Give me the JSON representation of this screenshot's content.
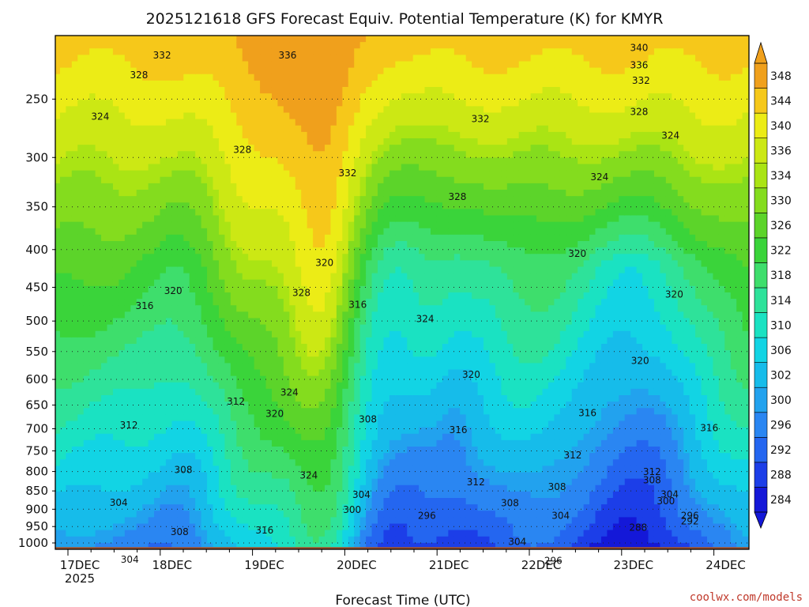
{
  "chart_data": {
    "type": "heatmap",
    "title": "2025121618 GFS Forecast Equiv. Potential Temperature (K) for KMYR",
    "xlabel": "Forecast Time (UTC)",
    "credit": "coolwx.com/models",
    "y_axis": {
      "label": "",
      "scale": "log",
      "direction": "pressure decreasing upward",
      "range_hPa": [
        1020,
        205
      ],
      "ticks": [
        1000,
        950,
        900,
        850,
        800,
        750,
        700,
        650,
        600,
        550,
        500,
        450,
        400,
        350,
        300,
        250
      ]
    },
    "x_axis": {
      "range": [
        "2025-12-16 18Z",
        "2025-12-24 06Z"
      ],
      "ticks": [
        {
          "label": "17DEC",
          "sub": "2025"
        },
        {
          "label": "18DEC",
          "sub": ""
        },
        {
          "label": "19DEC",
          "sub": ""
        },
        {
          "label": "20DEC",
          "sub": ""
        },
        {
          "label": "21DEC",
          "sub": ""
        },
        {
          "label": "22DEC",
          "sub": ""
        },
        {
          "label": "23DEC",
          "sub": ""
        },
        {
          "label": "24DEC",
          "sub": ""
        }
      ]
    },
    "colorbar": {
      "levels": [
        284,
        288,
        292,
        296,
        300,
        302,
        306,
        310,
        314,
        318,
        322,
        326,
        330,
        334,
        336,
        340,
        344,
        348
      ],
      "labels": [
        "284",
        "288",
        "292",
        "296",
        "300",
        "302",
        "306",
        "310",
        "314",
        "318",
        "322",
        "326",
        "330",
        "334",
        "336",
        "340",
        "344",
        "348"
      ],
      "colors": [
        "#1418d8",
        "#1c3ee8",
        "#2466f0",
        "#2a86f2",
        "#22a2ee",
        "#16bcea",
        "#12d4e4",
        "#1ae2c2",
        "#2ee29a",
        "#3ede6c",
        "#3ad43a",
        "#5cd42a",
        "#84dc1e",
        "#aae414",
        "#cce814",
        "#ecec16",
        "#f6c81a",
        "#f0a01c"
      ],
      "extend": "both"
    },
    "surface_color": "#a0522d",
    "grid": true,
    "contour_interval_K": 4,
    "contour_labels": [
      {
        "text": "340",
        "day": 6.19,
        "p": 213
      },
      {
        "text": "336",
        "day": 6.19,
        "p": 225
      },
      {
        "text": "332",
        "day": 6.21,
        "p": 236
      },
      {
        "text": "328",
        "day": 6.19,
        "p": 260
      },
      {
        "text": "324",
        "day": 6.53,
        "p": 280
      },
      {
        "text": "324",
        "day": 5.76,
        "p": 319
      },
      {
        "text": "332",
        "day": 1.02,
        "p": 218
      },
      {
        "text": "328",
        "day": 0.77,
        "p": 232
      },
      {
        "text": "336",
        "day": 2.38,
        "p": 218
      },
      {
        "text": "324",
        "day": 0.35,
        "p": 264
      },
      {
        "text": "328",
        "day": 1.89,
        "p": 293
      },
      {
        "text": "332",
        "day": 3.03,
        "p": 315
      },
      {
        "text": "332",
        "day": 4.47,
        "p": 266
      },
      {
        "text": "328",
        "day": 4.22,
        "p": 339
      },
      {
        "text": "320",
        "day": 2.78,
        "p": 417
      },
      {
        "text": "328",
        "day": 2.53,
        "p": 458
      },
      {
        "text": "320",
        "day": 1.14,
        "p": 455
      },
      {
        "text": "316",
        "day": 0.83,
        "p": 477
      },
      {
        "text": "316",
        "day": 3.14,
        "p": 475
      },
      {
        "text": "324",
        "day": 3.87,
        "p": 497
      },
      {
        "text": "320",
        "day": 5.52,
        "p": 405
      },
      {
        "text": "320",
        "day": 6.57,
        "p": 460
      },
      {
        "text": "320",
        "day": 4.37,
        "p": 591
      },
      {
        "text": "320",
        "day": 6.2,
        "p": 566
      },
      {
        "text": "324",
        "day": 2.4,
        "p": 625
      },
      {
        "text": "312",
        "day": 1.82,
        "p": 643
      },
      {
        "text": "320",
        "day": 2.24,
        "p": 668
      },
      {
        "text": "312",
        "day": 0.66,
        "p": 692
      },
      {
        "text": "308",
        "day": 3.25,
        "p": 680
      },
      {
        "text": "316",
        "day": 4.23,
        "p": 703
      },
      {
        "text": "316",
        "day": 5.63,
        "p": 666
      },
      {
        "text": "316",
        "day": 6.95,
        "p": 698
      },
      {
        "text": "312",
        "day": 5.47,
        "p": 760
      },
      {
        "text": "308",
        "day": 1.25,
        "p": 796
      },
      {
        "text": "324",
        "day": 2.61,
        "p": 810
      },
      {
        "text": "312",
        "day": 4.42,
        "p": 827
      },
      {
        "text": "312",
        "day": 6.33,
        "p": 801
      },
      {
        "text": "308",
        "day": 6.33,
        "p": 822
      },
      {
        "text": "308",
        "day": 5.3,
        "p": 839
      },
      {
        "text": "304",
        "day": 6.52,
        "p": 859
      },
      {
        "text": "304",
        "day": 3.18,
        "p": 860
      },
      {
        "text": "300",
        "day": 6.48,
        "p": 877
      },
      {
        "text": "308",
        "day": 4.79,
        "p": 883
      },
      {
        "text": "304",
        "day": 0.55,
        "p": 882
      },
      {
        "text": "300",
        "day": 3.08,
        "p": 902
      },
      {
        "text": "296",
        "day": 3.89,
        "p": 918
      },
      {
        "text": "304",
        "day": 5.34,
        "p": 918
      },
      {
        "text": "296",
        "day": 6.74,
        "p": 918
      },
      {
        "text": "292",
        "day": 6.74,
        "p": 934
      },
      {
        "text": "288",
        "day": 6.18,
        "p": 953
      },
      {
        "text": "316",
        "day": 2.13,
        "p": 961
      },
      {
        "text": "308",
        "day": 1.21,
        "p": 966
      },
      {
        "text": "304",
        "day": 4.87,
        "p": 996
      },
      {
        "text": "304",
        "day": 0.67,
        "p": 1053
      },
      {
        "text": "296",
        "day": 5.26,
        "p": 1057
      }
    ]
  }
}
